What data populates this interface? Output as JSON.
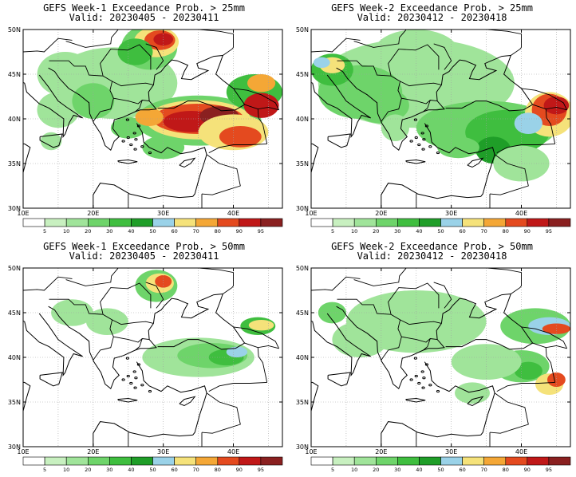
{
  "panels": [
    {
      "title": "GEFS Week-1 Exceedance Prob. > 25mm",
      "valid": "Valid: 20230405 - 20230411"
    },
    {
      "title": "GEFS Week-2 Exceedance Prob. > 25mm",
      "valid": "Valid: 20230412 - 20230418"
    },
    {
      "title": "GEFS Week-1 Exceedance Prob. > 50mm",
      "valid": "Valid: 20230405 - 20230411"
    },
    {
      "title": "GEFS Week-2 Exceedance Prob. > 50mm",
      "valid": "Valid: 20230412 - 20230418"
    }
  ],
  "lat_ticks": [
    "30N",
    "35N",
    "40N",
    "45N",
    "50N"
  ],
  "lon_ticks": [
    "10E",
    "20E",
    "30E",
    "40E"
  ],
  "colorbar": {
    "labels": [
      "5",
      "10",
      "20",
      "30",
      "40",
      "50",
      "60",
      "70",
      "80",
      "90",
      "95"
    ],
    "colors": [
      "#ffffff",
      "#c8f0c0",
      "#a0e49a",
      "#6ed46a",
      "#3fbe3f",
      "#1f9e28",
      "#9ad2e8",
      "#f5e27a",
      "#f4a736",
      "#e44a1f",
      "#c01818",
      "#8a2020"
    ]
  },
  "map_extent": {
    "lon": [
      10,
      47
    ],
    "lat": [
      30,
      50
    ]
  }
}
